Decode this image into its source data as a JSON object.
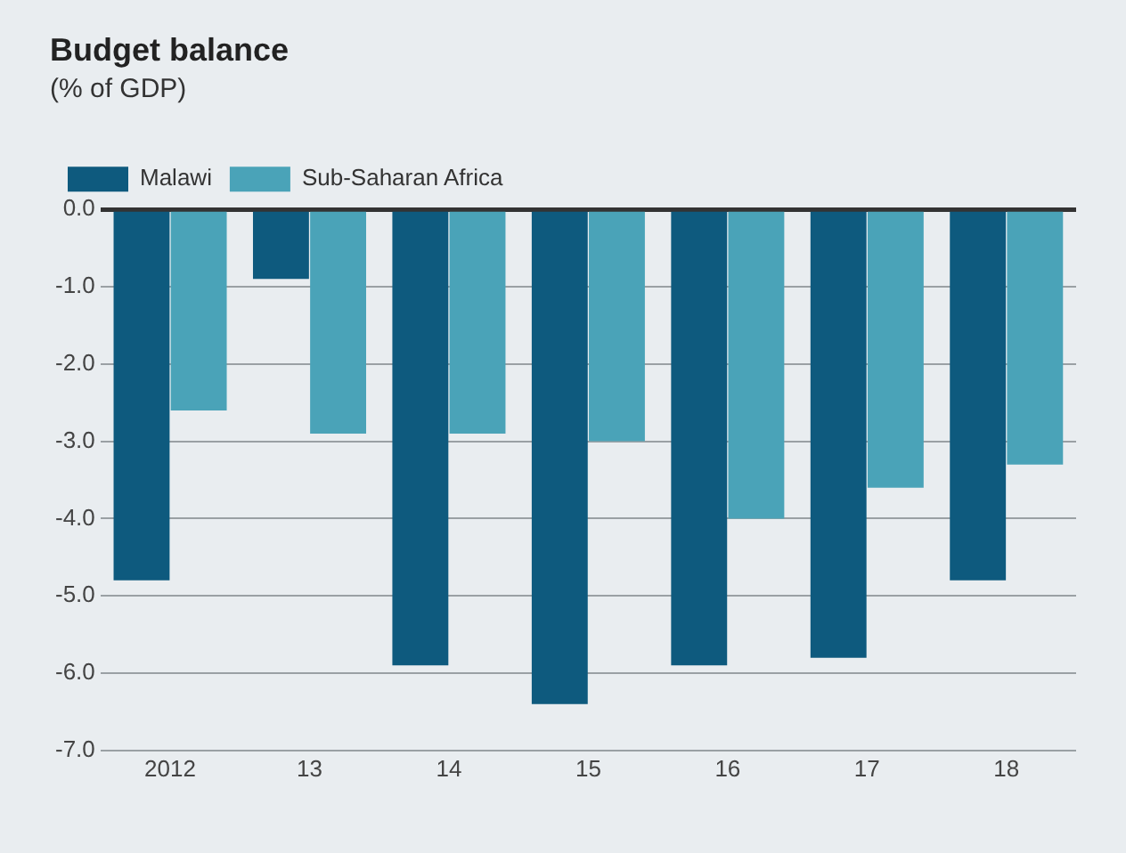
{
  "chart_data": {
    "type": "bar",
    "title": "Budget balance",
    "subtitle": "(% of GDP)",
    "categories": [
      "2012",
      "13",
      "14",
      "15",
      "16",
      "17",
      "18"
    ],
    "series": [
      {
        "name": "Malawi",
        "color": "#0e5a7e",
        "values": [
          -4.8,
          -0.9,
          -5.9,
          -6.4,
          -5.9,
          -5.8,
          -4.8
        ]
      },
      {
        "name": "Sub-Saharan Africa",
        "color": "#4aa3b8",
        "values": [
          -2.6,
          -2.9,
          -2.9,
          -3.0,
          -4.0,
          -3.6,
          -3.3
        ]
      }
    ],
    "ylim": [
      -7,
      0
    ],
    "yticks": [
      {
        "value": 0,
        "label": "0.0"
      },
      {
        "value": -1,
        "label": "-1.0"
      },
      {
        "value": -2,
        "label": "-2.0"
      },
      {
        "value": -3,
        "label": "-3.0"
      },
      {
        "value": -4,
        "label": "-4.0"
      },
      {
        "value": -5,
        "label": "-5.0"
      },
      {
        "value": -6,
        "label": "-6.0"
      },
      {
        "value": -7,
        "label": "-7.0"
      }
    ],
    "grid": "y",
    "legend": "top left"
  }
}
